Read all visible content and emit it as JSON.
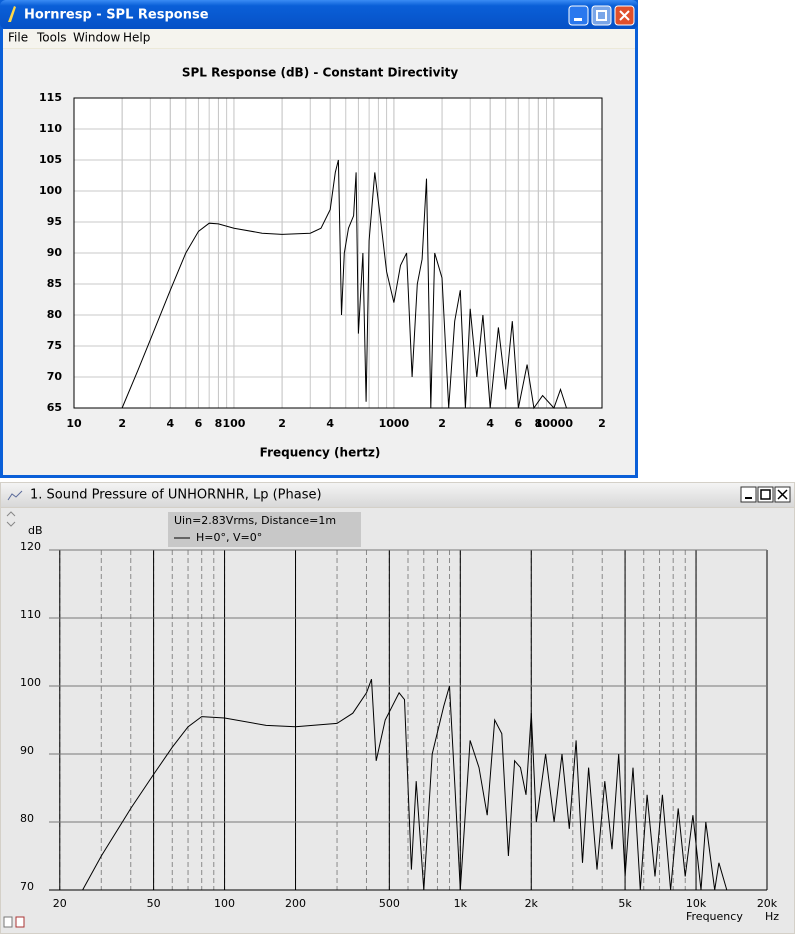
{
  "window": {
    "title": "Hornresp - SPL Response",
    "menu": [
      "File",
      "Tools",
      "Window",
      "Help"
    ]
  },
  "panel": {
    "title": "1. Sound Pressure of UNHORNHR, Lp (Phase)",
    "note": "Uin=2.83Vrms, Distance=1m"
  },
  "chart_data": [
    {
      "type": "line",
      "title": "SPL Response (dB) - Constant Directivity",
      "x_label": "Frequency (hertz)",
      "log_x": true,
      "grid": true,
      "color": "#000000",
      "xlim": [
        10,
        20000
      ],
      "xticks": [
        10,
        {
          "value": 20,
          "label": "2"
        },
        {
          "value": 40,
          "label": "4"
        },
        {
          "value": 60,
          "label": "6"
        },
        {
          "value": 80,
          "label": "8"
        },
        100,
        {
          "value": 200,
          "label": "2"
        },
        {
          "value": 400,
          "label": "4"
        },
        1000,
        {
          "value": 2000,
          "label": "2"
        },
        {
          "value": 4000,
          "label": "4"
        },
        {
          "value": 6000,
          "label": "6"
        },
        {
          "value": 8000,
          "label": "8"
        },
        10000,
        {
          "value": 20000,
          "label": "2"
        }
      ],
      "ylim": [
        65,
        115
      ],
      "yticks": [
        65,
        70,
        75,
        80,
        85,
        90,
        95,
        100,
        105,
        110,
        115
      ],
      "x": [
        20,
        25,
        30,
        40,
        50,
        60,
        70,
        80,
        100,
        150,
        200,
        300,
        350,
        400,
        430,
        450,
        470,
        490,
        520,
        560,
        580,
        600,
        640,
        670,
        700,
        760,
        820,
        900,
        1000,
        1100,
        1200,
        1300,
        1400,
        1500,
        1600,
        1700,
        1800,
        2000,
        2200,
        2400,
        2600,
        2800,
        3000,
        3300,
        3600,
        4000,
        4500,
        5000,
        5500,
        6000,
        6800,
        7500,
        8500,
        10000,
        11000,
        12000
      ],
      "values": [
        65,
        71,
        76,
        84,
        90,
        93.5,
        94.8,
        94.7,
        94,
        93.2,
        93,
        93.2,
        94,
        97,
        103,
        105,
        80,
        90,
        94,
        96,
        103,
        77,
        90,
        66,
        92,
        103,
        96,
        87,
        82,
        88,
        90,
        70,
        85,
        89,
        102,
        65,
        90,
        86,
        65,
        79,
        84,
        65,
        81,
        70,
        80,
        65,
        78,
        68,
        79,
        65,
        72,
        65,
        67,
        65,
        68,
        65
      ]
    },
    {
      "type": "line",
      "y_label": "dB",
      "x_label": "Frequency",
      "x_unit": "Hz",
      "log_x": true,
      "grid": true,
      "xlim": [
        18,
        20000
      ],
      "xticks": [
        20,
        50,
        100,
        200,
        500,
        {
          "value": 1000,
          "label": "1k"
        },
        {
          "value": 2000,
          "label": "2k"
        },
        {
          "value": 5000,
          "label": "5k"
        },
        {
          "value": 10000,
          "label": "10k"
        },
        {
          "value": 20000,
          "label": "20k"
        }
      ],
      "ylim": [
        70,
        120
      ],
      "yticks": [
        70,
        80,
        90,
        100,
        110,
        120
      ],
      "x": [
        20,
        25,
        30,
        40,
        50,
        60,
        70,
        80,
        100,
        150,
        200,
        300,
        350,
        400,
        420,
        440,
        480,
        550,
        580,
        620,
        650,
        700,
        760,
        850,
        900,
        950,
        1000,
        1100,
        1200,
        1300,
        1400,
        1500,
        1600,
        1700,
        1800,
        1900,
        2000,
        2100,
        2300,
        2500,
        2700,
        2900,
        3100,
        3300,
        3500,
        3800,
        4100,
        4400,
        4700,
        5000,
        5400,
        5800,
        6200,
        6700,
        7200,
        7800,
        8400,
        9000,
        9700,
        10500,
        11000,
        12000,
        12500,
        13500,
        20000
      ],
      "series": [
        {
          "name": "H=0°, V=0°",
          "color": "#000000",
          "values": [
            70,
            70,
            75,
            82,
            87,
            91,
            94,
            95.5,
            95.3,
            94.2,
            94,
            94.5,
            96,
            99,
            101,
            89,
            95,
            99,
            98,
            73,
            86,
            70,
            90,
            97,
            100,
            85,
            70,
            92,
            88,
            81,
            95,
            93,
            75,
            89,
            88,
            84,
            96,
            80,
            90,
            80,
            90,
            79,
            92,
            74,
            88,
            73,
            86,
            76,
            90,
            72,
            88,
            70,
            84,
            72,
            84,
            70,
            82,
            72,
            81,
            70,
            80,
            70,
            74,
            70,
            70
          ]
        }
      ]
    }
  ]
}
